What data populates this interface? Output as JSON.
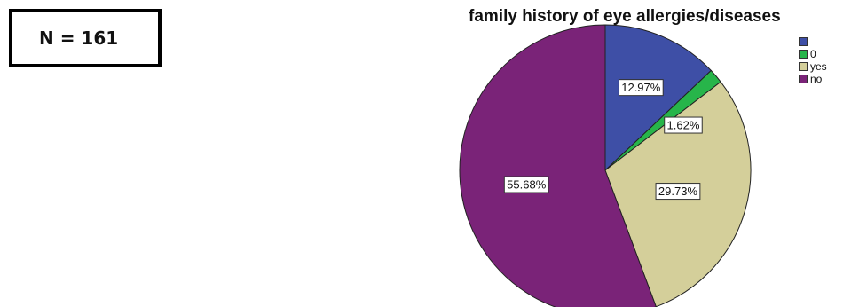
{
  "sample_label": "N = 161",
  "chart_data": {
    "type": "pie",
    "title": "family history of eye allergies/diseases",
    "categories": [
      "",
      "0",
      "yes",
      "no"
    ],
    "values": [
      12.97,
      1.62,
      29.73,
      55.68
    ],
    "labels": [
      "12.97%",
      "1.62%",
      "29.73%",
      "55.68%"
    ],
    "colors": [
      "#3e4fa6",
      "#27b54a",
      "#d4cf9a",
      "#7a2378"
    ],
    "legend_position": "top-right",
    "start": "12 o'clock, clockwise"
  }
}
